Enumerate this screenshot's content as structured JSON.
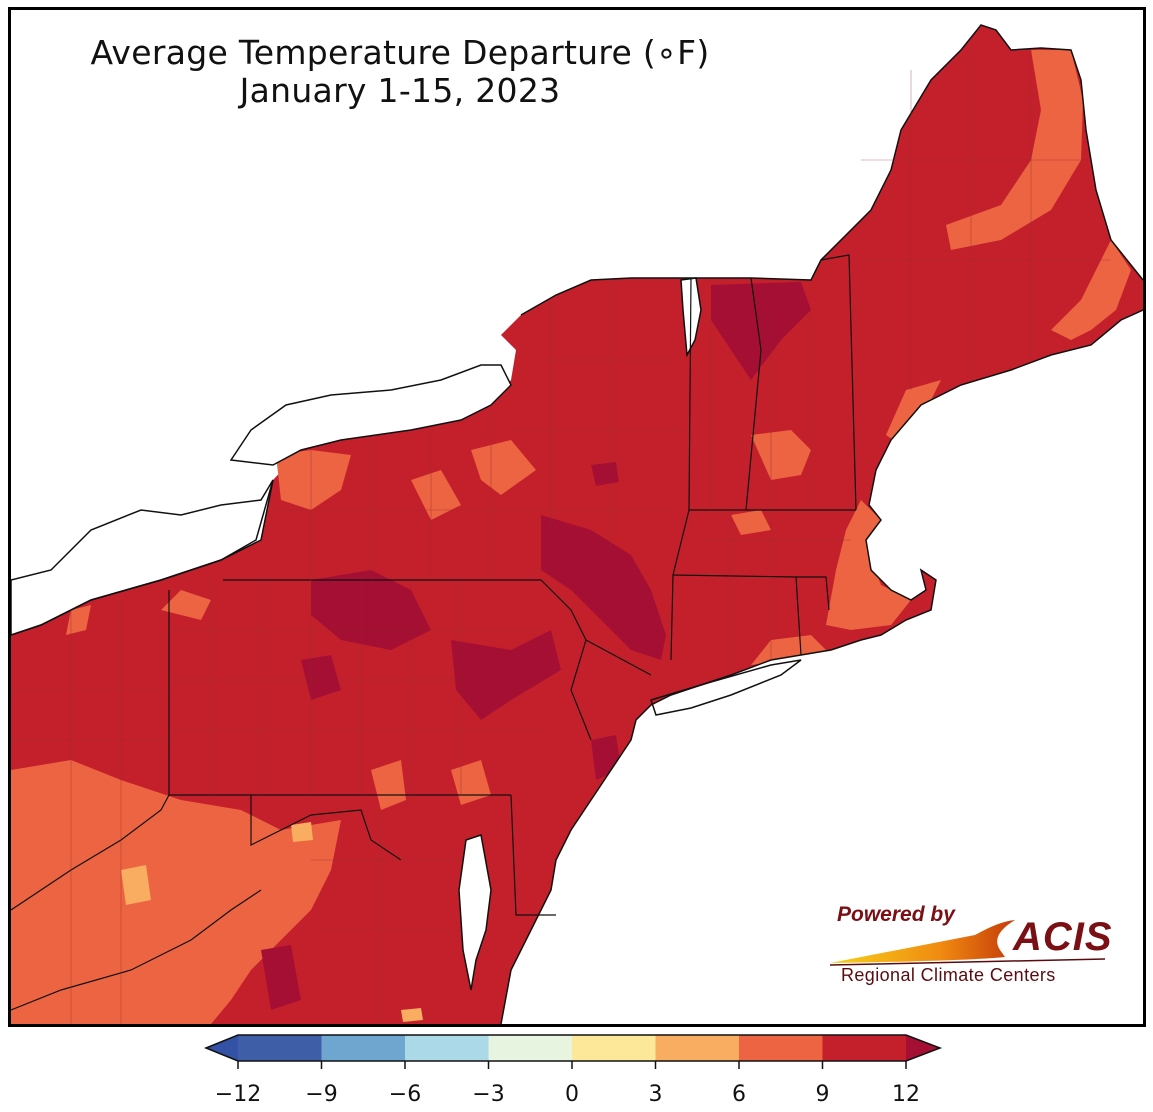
{
  "title": {
    "line1": "Average Temperature Departure (∘F)",
    "line2": "January 1-15, 2023"
  },
  "logo": {
    "powered_by": "Powered by",
    "brand": "ACIS",
    "subtitle": "Regional Climate Centers"
  },
  "legend": {
    "ticks": [
      "−12",
      "−9",
      "−6",
      "−3",
      "0",
      "3",
      "6",
      "9",
      "12"
    ],
    "bins": [
      {
        "from": -12,
        "to": -9,
        "color": "#3f5ea8"
      },
      {
        "from": -9,
        "to": -6,
        "color": "#6fa6cf"
      },
      {
        "from": -6,
        "to": -3,
        "color": "#abd9e8"
      },
      {
        "from": -3,
        "to": 0,
        "color": "#e7f4e0"
      },
      {
        "from": 0,
        "to": 3,
        "color": "#fde89a"
      },
      {
        "from": 3,
        "to": 6,
        "color": "#f9ad60"
      },
      {
        "from": 6,
        "to": 9,
        "color": "#ec6441"
      },
      {
        "from": 9,
        "to": 12,
        "color": "#c4202c"
      }
    ],
    "under_color": "#3351a5",
    "over_color": "#a50f33"
  },
  "map": {
    "colors": {
      "dominant": "#c4202c",
      "warmest": "#a50f33",
      "warm": "#ec6441",
      "mild": "#f9ad60",
      "water": "#ffffff",
      "border": "#111111"
    }
  }
}
